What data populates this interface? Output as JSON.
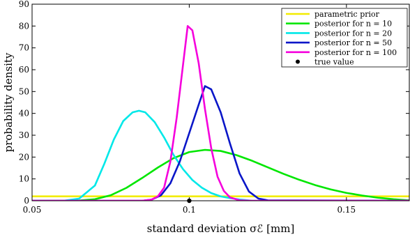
{
  "chart_data": {
    "type": "line",
    "xlabel": "standard deviation σℰ [mm]",
    "ylabel": "probability density",
    "xlim": [
      0.05,
      0.17
    ],
    "ylim": [
      0,
      90
    ],
    "x_ticks": [
      0.05,
      0.1,
      0.15
    ],
    "x_tick_labels": [
      "0.05",
      "0.1",
      "0.15"
    ],
    "y_ticks": [
      0,
      10,
      20,
      30,
      40,
      50,
      60,
      70,
      80,
      90
    ],
    "y_tick_labels": [
      "0",
      "10",
      "20",
      "30",
      "40",
      "50",
      "60",
      "70",
      "80",
      "90"
    ],
    "grid": false,
    "legend_position": "top-right",
    "series": [
      {
        "name": "parametric prior",
        "color": "#f2ec00",
        "x": [
          0.05,
          0.17
        ],
        "y": [
          2,
          2
        ]
      },
      {
        "name": "posterior for n = 10",
        "color": "#00e600",
        "x": [
          0.05,
          0.06,
          0.065,
          0.07,
          0.075,
          0.08,
          0.085,
          0.09,
          0.095,
          0.1,
          0.105,
          0.11,
          0.115,
          0.12,
          0.125,
          0.13,
          0.135,
          0.14,
          0.145,
          0.15,
          0.155,
          0.16,
          0.165,
          0.17
        ],
        "y": [
          0,
          0,
          0.1,
          0.7,
          2.5,
          5.9,
          10.4,
          15.2,
          19.5,
          22.3,
          23.3,
          22.8,
          20.9,
          18.3,
          15.3,
          12.3,
          9.6,
          7.2,
          5.2,
          3.6,
          2.4,
          1.4,
          0.7,
          0.2
        ]
      },
      {
        "name": "posterior for n = 20",
        "color": "#00e8e8",
        "x": [
          0.05,
          0.06,
          0.065,
          0.07,
          0.073,
          0.076,
          0.079,
          0.082,
          0.084,
          0.086,
          0.089,
          0.092,
          0.095,
          0.098,
          0.101,
          0.104,
          0.107,
          0.11,
          0.113,
          0.116,
          0.12,
          0.17
        ],
        "y": [
          0,
          0,
          1,
          7,
          17,
          28,
          36.5,
          40.5,
          41.2,
          40.5,
          36,
          29,
          21,
          14.5,
          9.5,
          6,
          3.5,
          2,
          1.2,
          0.6,
          0,
          0
        ]
      },
      {
        "name": "posterior for n = 50",
        "color": "#0a16c8",
        "x": [
          0.05,
          0.085,
          0.088,
          0.091,
          0.094,
          0.097,
          0.1,
          0.103,
          0.105,
          0.107,
          0.11,
          0.113,
          0.116,
          0.119,
          0.122,
          0.125,
          0.17
        ],
        "y": [
          0,
          0,
          0.5,
          2.5,
          8,
          18,
          31,
          44,
          52.5,
          51,
          40.5,
          26,
          12.5,
          4.2,
          1,
          0.2,
          0
        ]
      },
      {
        "name": "posterior for n = 100",
        "color": "#f500dc",
        "x": [
          0.05,
          0.085,
          0.088,
          0.09,
          0.092,
          0.094,
          0.096,
          0.098,
          0.0995,
          0.101,
          0.103,
          0.105,
          0.107,
          0.109,
          0.111,
          0.113,
          0.116,
          0.12,
          0.17
        ],
        "y": [
          0,
          0,
          0.5,
          2,
          6,
          18,
          38,
          62,
          80,
          78,
          63,
          42,
          24,
          11,
          4.5,
          1.5,
          0.2,
          0,
          0
        ]
      }
    ],
    "markers": [
      {
        "name": "true value",
        "x": 0.1,
        "y": 0,
        "color": "#000000"
      }
    ],
    "legend": [
      {
        "label": "parametric prior",
        "color": "#f2ec00",
        "kind": "line"
      },
      {
        "label": "posterior for n = 10",
        "color": "#00e600",
        "kind": "line"
      },
      {
        "label": "posterior for n = 20",
        "color": "#00e8e8",
        "kind": "line"
      },
      {
        "label": "posterior for n = 50",
        "color": "#0a16c8",
        "kind": "line"
      },
      {
        "label": "posterior for n = 100",
        "color": "#f500dc",
        "kind": "line"
      },
      {
        "label": "true value",
        "color": "#000000",
        "kind": "dot"
      }
    ]
  }
}
